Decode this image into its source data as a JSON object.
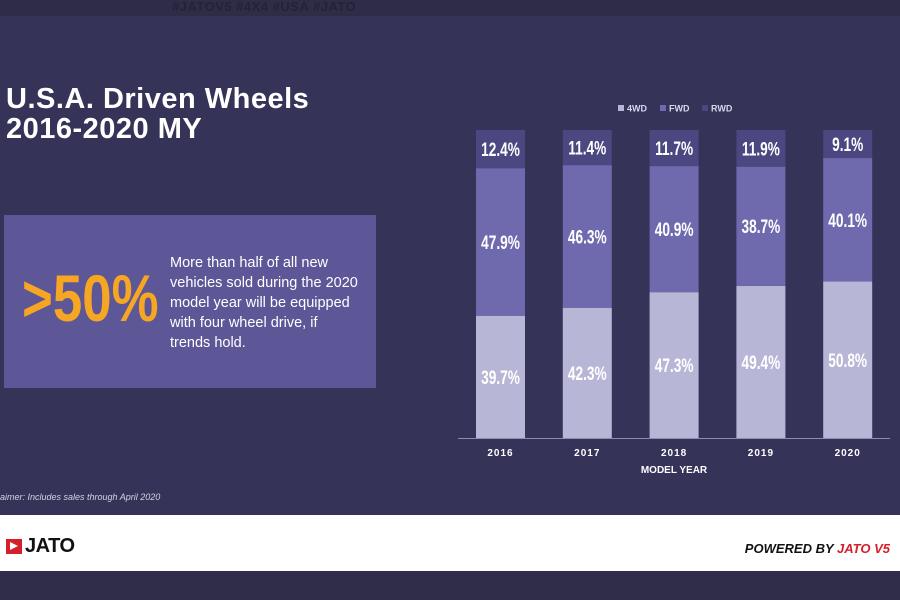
{
  "header": {
    "hashtags": "#JATOV5 #4X4 #USA #JATO"
  },
  "title_line1": "U.S.A. Driven Wheels",
  "title_line2": "2016-2020 MY",
  "callout": {
    "big_value": ">50%",
    "text": "More than half of all new vehicles sold during the 2020 model year will be equipped with four wheel drive, if trends hold."
  },
  "disclaimer": "aimer: Includes sales through April 2020",
  "footer": {
    "logo": "JATO",
    "powered_prefix": "POWERED BY ",
    "powered_brand": "JATO V5"
  },
  "chart_data": {
    "type": "bar",
    "stacked": true,
    "categories": [
      "2016",
      "2017",
      "2018",
      "2019",
      "2020"
    ],
    "xlabel": "MODEL YEAR",
    "ylim": [
      0,
      100
    ],
    "legend_position": "top",
    "grid": false,
    "series": [
      {
        "name": "4WD",
        "color": "#b8b6d6",
        "values": [
          39.7,
          42.3,
          47.3,
          49.4,
          50.8
        ],
        "labels": [
          "39.7%",
          "42.3%",
          "47.3%",
          "49.4%",
          "50.8%"
        ]
      },
      {
        "name": "FWD",
        "color": "#6f69ad",
        "values": [
          47.9,
          46.3,
          40.9,
          38.7,
          40.1
        ],
        "labels": [
          "47.9%",
          "46.3%",
          "40.9%",
          "38.7%",
          "40.1%"
        ]
      },
      {
        "name": "RWD",
        "color": "#4b4780",
        "values": [
          12.4,
          11.4,
          11.7,
          11.9,
          9.1
        ],
        "labels": [
          "12.4%",
          "11.4%",
          "11.7%",
          "11.9%",
          "9.1%"
        ]
      }
    ]
  }
}
